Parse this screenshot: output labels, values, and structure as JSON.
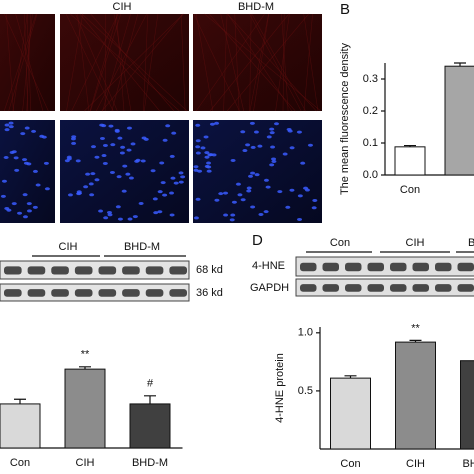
{
  "panel_labels": {
    "b": "B",
    "d": "D"
  },
  "panel_a": {
    "column_labels": [
      "CIH",
      "BHD-M"
    ]
  },
  "blot_c": {
    "group_labels": [
      "CIH",
      "BHD-M"
    ],
    "markers": [
      "68 kd",
      "36 kd"
    ]
  },
  "blot_d": {
    "group_labels": [
      "Con",
      "CIH",
      "B"
    ],
    "proteins": [
      "4-HNE",
      "GAPDH"
    ]
  },
  "chart_data": [
    {
      "type": "bar",
      "ylabel": "The mean fluorescence density",
      "categories": [
        "Con",
        null
      ],
      "values": [
        0.088,
        0.34
      ],
      "errors": [
        0.004,
        0.01
      ],
      "colors": [
        "#ffffff",
        "#a6a6a6"
      ],
      "ylim": [
        0,
        0.35
      ],
      "yticks": [
        {
          "value": 0,
          "label": "0.0"
        },
        0.1,
        0.2,
        0.3
      ]
    },
    {
      "type": "bar",
      "categories": [
        "Con",
        "CIH",
        "BHD-M"
      ],
      "values": [
        0.38,
        0.68,
        0.38
      ],
      "errors": [
        0.04,
        0.02,
        0.07
      ],
      "colors": [
        "#d9d9d9",
        "#8c8c8c",
        "#404040"
      ],
      "ylim": [
        0,
        1
      ],
      "annotations": [
        {
          "category": "CIH",
          "text": "**"
        },
        {
          "category": "BHD-M",
          "text": "#"
        }
      ]
    },
    {
      "type": "bar",
      "ylabel": "4-HNE protein",
      "categories": [
        "Con",
        "CIH",
        "BHD-M"
      ],
      "values": [
        0.61,
        0.92,
        0.76
      ],
      "errors": [
        0.02,
        0.015,
        0.04
      ],
      "colors": [
        "#d9d9d9",
        "#8c8c8c",
        "#404040"
      ],
      "ylim": [
        0,
        1.05
      ],
      "yticks": [
        0.5,
        {
          "value": 1,
          "label": "1.0"
        }
      ],
      "annotations": [
        {
          "category": "CIH",
          "text": "**"
        }
      ]
    }
  ]
}
